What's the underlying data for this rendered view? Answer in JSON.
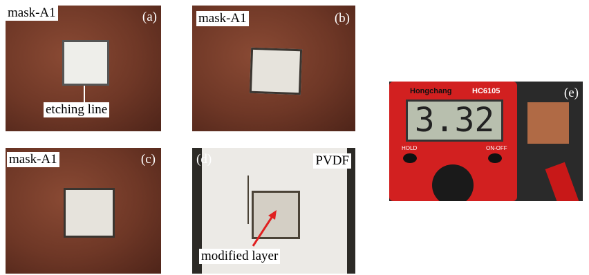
{
  "panels": [
    {
      "label": "(a)",
      "mask": "mask-A1",
      "annotation": "etching line"
    },
    {
      "label": "(b)",
      "mask": "mask-A1"
    },
    {
      "label": "(c)",
      "mask": "mask-A1"
    },
    {
      "label": "(d)",
      "material": "PVDF",
      "annotation": "modified layer"
    },
    {
      "label": "(e)",
      "brand": "Hongchang",
      "model": "HC6105",
      "reading": "3.32",
      "buttons": [
        "HOLD",
        "ON-OFF"
      ]
    }
  ]
}
